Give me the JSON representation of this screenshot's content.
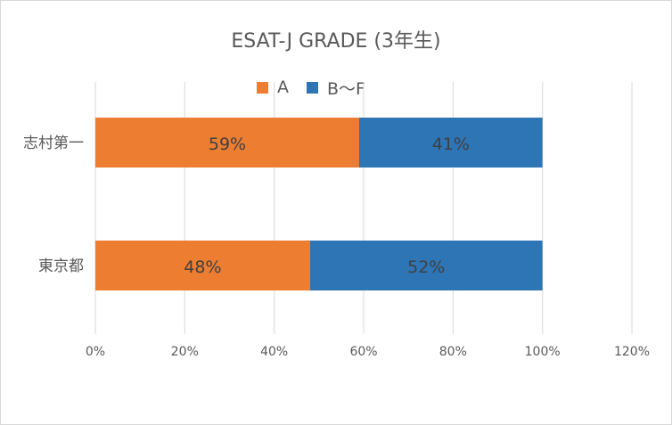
{
  "chart_data": {
    "type": "bar",
    "orientation": "horizontal",
    "stacked": true,
    "title": "ESAT-J GRADE (3年生)",
    "categories": [
      "志村第一",
      "東京都"
    ],
    "series": [
      {
        "name": "A",
        "color": "#ED7D31",
        "values": [
          59,
          48
        ],
        "labels": [
          "59%",
          "48%"
        ]
      },
      {
        "name": "B〜F",
        "color": "#2E75B6",
        "values": [
          41,
          52
        ],
        "labels": [
          "41%",
          "52%"
        ]
      }
    ],
    "xlim": [
      0,
      120
    ],
    "xticks": [
      0,
      20,
      40,
      60,
      80,
      100,
      120
    ],
    "xtick_labels": [
      "0%",
      "20%",
      "40%",
      "60%",
      "80%",
      "100%",
      "120%"
    ],
    "grid": true,
    "legend_position": "top"
  }
}
